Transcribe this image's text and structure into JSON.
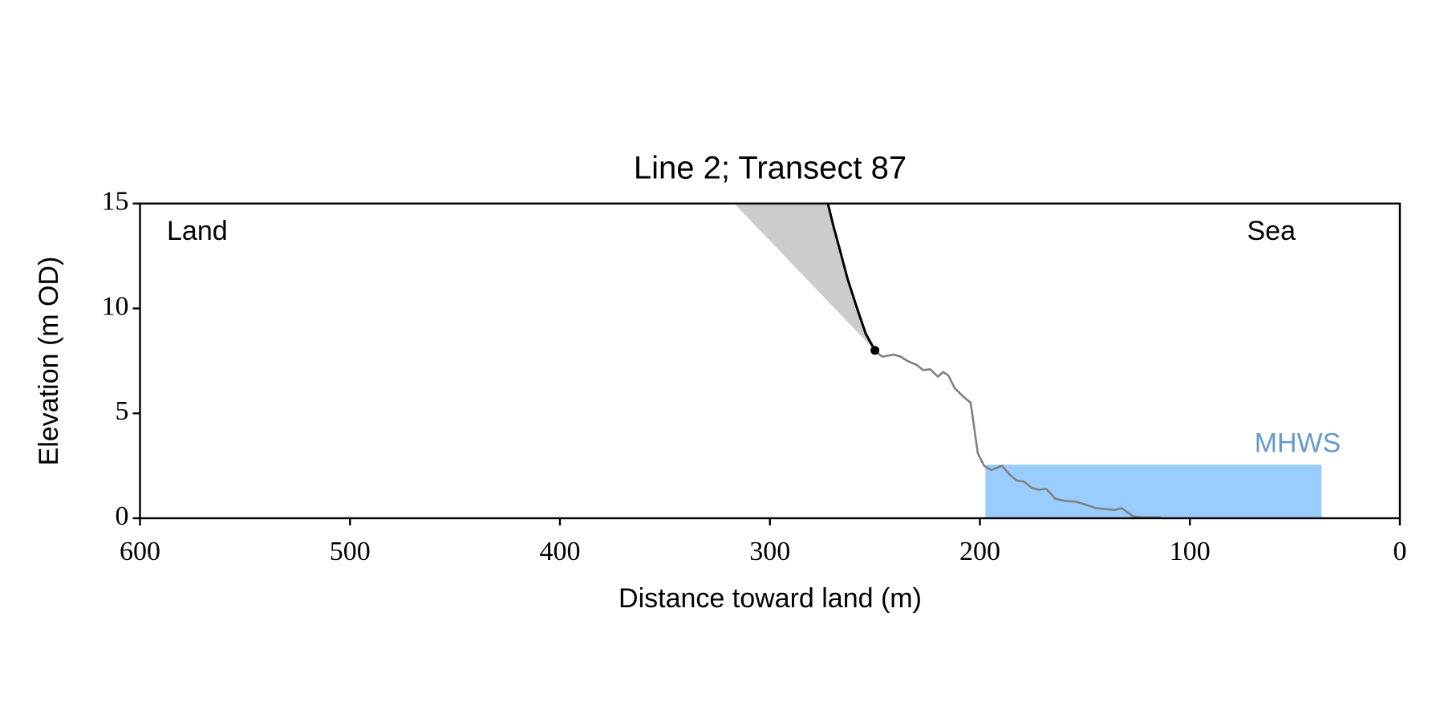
{
  "chart_data": {
    "type": "line",
    "title": "Line 2; Transect 87",
    "xlabel": "Distance toward land (m)",
    "ylabel": "Elevation (m OD)",
    "annotations": [
      "Land",
      "Sea"
    ],
    "xlim": [
      600,
      0
    ],
    "ylim": [
      0,
      15
    ],
    "xticks": [
      600,
      500,
      400,
      300,
      200,
      100,
      0
    ],
    "yticks": [
      0,
      5,
      10,
      15
    ],
    "grid": false,
    "series": [
      {
        "type": "polygon",
        "color": "#cccccc",
        "x": [
          317,
          250,
          254.4,
          258.8,
          263,
          266.7,
          269.7,
          272.4
        ],
        "values": [
          15,
          8,
          8.8,
          10.1,
          11.4,
          12.8,
          13.9,
          15
        ]
      },
      {
        "type": "area",
        "name": "MHWS",
        "color": "#99ccff",
        "label_color": "#6699cc",
        "x": [
          197.4,
          37.3
        ],
        "values": [
          2.55,
          2.55
        ]
      },
      {
        "type": "line",
        "color": "#000000",
        "x": [
          250,
          254.4,
          258.8,
          263,
          266.7,
          269.7,
          272.4
        ],
        "values": [
          8,
          8.8,
          10.1,
          11.4,
          12.8,
          13.9,
          15
        ]
      },
      {
        "type": "line",
        "color": "#808080",
        "x": [
          250,
          246.5,
          241,
          237.7,
          234.6,
          230,
          227,
          223.7,
          220,
          217.5,
          215,
          212,
          208,
          204.4,
          201,
          198,
          194.7,
          192,
          189.5,
          186,
          182.5,
          179,
          175.4,
          172,
          168.4,
          164,
          159.6,
          154.4,
          150,
          144.7,
          140.4,
          136,
          132.5,
          127,
          122.8,
          114
        ],
        "values": [
          7.98,
          7.7,
          7.8,
          7.7,
          7.5,
          7.3,
          7.06,
          7.1,
          6.75,
          6.97,
          6.8,
          6.2,
          5.8,
          5.5,
          3.1,
          2.5,
          2.3,
          2.4,
          2.5,
          2.1,
          1.8,
          1.75,
          1.45,
          1.36,
          1.4,
          0.92,
          0.83,
          0.79,
          0.66,
          0.48,
          0.44,
          0.39,
          0.48,
          0.09,
          0.04,
          0.04
        ]
      },
      {
        "type": "scatter",
        "color": "#000000",
        "x": [
          250
        ],
        "values": [
          8
        ]
      }
    ]
  }
}
